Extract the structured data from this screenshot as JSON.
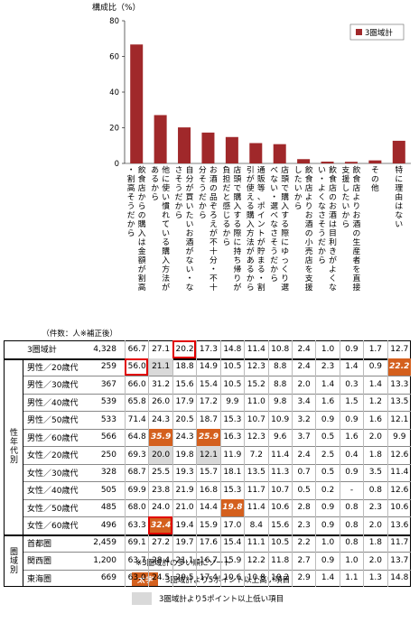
{
  "chart_data": {
    "type": "bar",
    "ylabel": "構成比（%）",
    "ylim": [
      0,
      80
    ],
    "yticks": [
      0,
      20,
      40,
      60,
      80
    ],
    "legend": "3圏域計",
    "legend_position": "top-right",
    "bar_color": "#a0282a",
    "categories": [
      "飲食店からの購入は金額が割高・割高そうだから",
      "他に使い慣れている購入方法があるから",
      "自分が買いたいお酒がない・なさそうだから",
      "お酒の品ぞろえが不十分・不十分そうだから",
      "店頭で購入する際に持ち帰りが負担だと感じるから",
      "通販等、ポイントが貯まる・割引が使える購入方法があるから",
      "店頭で購入する際にゆっくり選べない・選べなさそうだから",
      "飲食店よりお酒の小売店を支援したいから",
      "飲食店のお酒は目利きがよくない・よくなさそうだから",
      "飲食店よりお酒の生産者を直接支援したいから",
      "その他",
      "特に理由はない"
    ],
    "values": [
      66.7,
      27.1,
      20.2,
      17.3,
      14.8,
      11.4,
      10.8,
      2.4,
      1.0,
      0.9,
      1.7,
      12.7
    ],
    "table": {
      "count_header": "（件数：人※補正後）",
      "rows": [
        {
          "group": "",
          "label": "3圏域計",
          "n": "4,328",
          "values": [
            66.7,
            27.1,
            20.2,
            17.3,
            14.8,
            11.4,
            10.8,
            2.4,
            1.0,
            0.9,
            1.7,
            12.7
          ]
        },
        {
          "group": "sex_age",
          "label": "男性／20歳代",
          "n": "259",
          "values": [
            56.0,
            21.1,
            18.8,
            14.9,
            10.5,
            12.3,
            8.8,
            2.4,
            2.3,
            1.4,
            0.9,
            22.2
          ]
        },
        {
          "group": "sex_age",
          "label": "男性／30歳代",
          "n": "367",
          "values": [
            66.0,
            31.2,
            15.6,
            15.4,
            10.5,
            15.2,
            8.8,
            2.0,
            1.4,
            0.3,
            1.4,
            13.3
          ]
        },
        {
          "group": "sex_age",
          "label": "男性／40歳代",
          "n": "539",
          "values": [
            65.8,
            26.0,
            17.9,
            17.2,
            9.9,
            11.0,
            9.8,
            3.4,
            1.6,
            1.5,
            1.2,
            13.5
          ]
        },
        {
          "group": "sex_age",
          "label": "男性／50歳代",
          "n": "533",
          "values": [
            71.4,
            24.3,
            20.5,
            18.7,
            15.3,
            10.7,
            10.9,
            3.2,
            0.9,
            0.9,
            1.6,
            12.1
          ]
        },
        {
          "group": "sex_age",
          "label": "男性／60歳代",
          "n": "566",
          "values": [
            64.8,
            35.9,
            24.3,
            25.9,
            16.3,
            12.3,
            9.6,
            3.7,
            0.5,
            1.6,
            2.0,
            9.9
          ]
        },
        {
          "group": "sex_age",
          "label": "女性／20歳代",
          "n": "250",
          "values": [
            69.3,
            20.0,
            19.8,
            12.1,
            11.9,
            7.2,
            11.4,
            2.4,
            2.5,
            0.4,
            1.8,
            12.6
          ]
        },
        {
          "group": "sex_age",
          "label": "女性／30歳代",
          "n": "328",
          "values": [
            68.7,
            25.5,
            19.3,
            15.7,
            18.1,
            13.5,
            11.3,
            0.7,
            0.5,
            0.9,
            3.5,
            11.4
          ]
        },
        {
          "group": "sex_age",
          "label": "女性／40歳代",
          "n": "505",
          "values": [
            69.9,
            23.8,
            21.9,
            16.8,
            15.3,
            11.7,
            10.7,
            0.5,
            0.2,
            null,
            0.8,
            12.6
          ]
        },
        {
          "group": "sex_age",
          "label": "女性／50歳代",
          "n": "485",
          "values": [
            68.0,
            24.0,
            21.0,
            14.4,
            19.8,
            11.4,
            10.6,
            2.8,
            0.9,
            0.8,
            2.3,
            10.6
          ]
        },
        {
          "group": "sex_age",
          "label": "女性／60歳代",
          "n": "496",
          "values": [
            63.3,
            32.4,
            19.4,
            15.9,
            17.0,
            8.4,
            15.6,
            2.3,
            0.9,
            0.8,
            2.0,
            13.6
          ]
        },
        {
          "group": "area",
          "label": "首都圏",
          "n": "2,459",
          "values": [
            69.1,
            27.2,
            19.7,
            17.6,
            15.4,
            11.1,
            10.5,
            2.2,
            1.0,
            0.8,
            1.8,
            11.7
          ]
        },
        {
          "group": "area",
          "label": "関西圏",
          "n": "1,200",
          "values": [
            63.7,
            28.4,
            21.1,
            16.7,
            15.9,
            12.2,
            11.8,
            2.7,
            0.9,
            1.0,
            2.0,
            13.7
          ]
        },
        {
          "group": "area",
          "label": "東海圏",
          "n": "669",
          "values": [
            63.0,
            24.5,
            20.5,
            17.4,
            10.6,
            10.8,
            10.2,
            2.9,
            1.4,
            1.1,
            1.3,
            14.8
          ]
        }
      ],
      "group_labels": {
        "sex_age": "性年代別",
        "area": "圏域別"
      },
      "highlight_high": [
        [
          1,
          11
        ],
        [
          5,
          1
        ],
        [
          5,
          3
        ],
        [
          9,
          4
        ],
        [
          10,
          1
        ]
      ],
      "highlight_low": [
        [
          1,
          1
        ],
        [
          6,
          1
        ],
        [
          6,
          3
        ]
      ],
      "outlined": [
        [
          0,
          2
        ],
        [
          1,
          0
        ],
        [
          10,
          1
        ]
      ],
      "high_color": "#d4601e",
      "low_color": "#d9d9d9",
      "outline_color": "#e00000"
    },
    "notes": {
      "sort_note": "※3圏域計の多い順にソート",
      "high_sample": "太字",
      "high_legend": "3圏域計より5ポイント以上高い項目",
      "low_legend": "3圏域計より5ポイント以上低い項目"
    }
  }
}
